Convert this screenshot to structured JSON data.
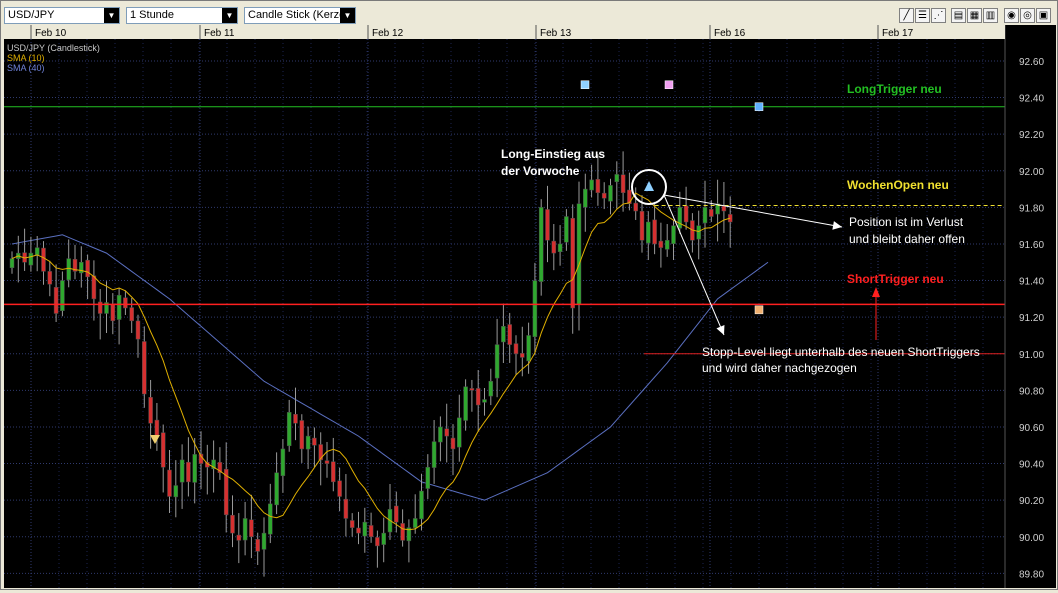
{
  "toolbar": {
    "symbol": "USD/JPY",
    "interval": "1 Stunde",
    "chart_style": "Candle Stick (Kerze"
  },
  "legend": {
    "instrument": "USD/JPY (Candlestick)",
    "sma10": "SMA (10)",
    "sma40": "SMA (40)"
  },
  "colors": {
    "background": "#000000",
    "grid": "#2f3a6e",
    "bull_candle": "#2fa82f",
    "bear_candle": "#d63030",
    "sma10": "#e0b000",
    "sma40": "#5a6fc0",
    "long_trigger": "#23c023",
    "short_trigger": "#ff2020",
    "wochen_open": "#f0e030"
  },
  "chart_data": {
    "type": "candlestick",
    "x_labels": [
      "Feb 10",
      "Feb 11",
      "Feb 12",
      "Feb 13",
      "Feb 16",
      "Feb 17"
    ],
    "y_ticks": [
      "92.60",
      "92.40",
      "92.20",
      "92.00",
      "91.80",
      "91.60",
      "91.40",
      "91.20",
      "91.00",
      "90.80",
      "90.60",
      "90.40",
      "90.20",
      "90.00",
      "89.80"
    ],
    "ylim": [
      89.72,
      92.72
    ],
    "grid": true,
    "closes": [
      91.52,
      91.55,
      91.5,
      91.55,
      91.58,
      91.45,
      91.38,
      91.22,
      91.4,
      91.52,
      91.45,
      91.5,
      91.42,
      91.3,
      91.22,
      91.28,
      91.18,
      91.32,
      91.25,
      91.18,
      91.08,
      90.78,
      90.62,
      90.55,
      90.38,
      90.22,
      90.28,
      90.42,
      90.3,
      90.45,
      90.4,
      90.38,
      90.42,
      90.35,
      90.12,
      90.02,
      89.98,
      90.1,
      90.0,
      89.92,
      90.02,
      90.18,
      90.35,
      90.48,
      90.68,
      90.62,
      90.48,
      90.55,
      90.5,
      90.42,
      90.4,
      90.3,
      90.22,
      90.1,
      90.05,
      90.02,
      90.08,
      90.0,
      89.95,
      90.02,
      90.15,
      90.08,
      89.98,
      90.05,
      90.1,
      90.25,
      90.38,
      90.52,
      90.6,
      90.55,
      90.48,
      90.65,
      90.82,
      90.8,
      90.72,
      90.75,
      90.85,
      91.05,
      91.15,
      91.05,
      91.0,
      90.98,
      91.1,
      91.4,
      91.8,
      91.62,
      91.55,
      91.6,
      91.75,
      91.25,
      91.82,
      91.9,
      91.95,
      91.88,
      91.85,
      91.92,
      91.98,
      91.88,
      91.82,
      91.78,
      91.62,
      91.72,
      91.6,
      91.58,
      91.62,
      91.7,
      91.8,
      91.72,
      91.62,
      91.7,
      91.8,
      91.75,
      91.82,
      91.78,
      91.72
    ],
    "long_trigger": 92.35,
    "short_trigger": 91.27,
    "wochen_open": 91.81,
    "stopp_level": 91.0,
    "sma40_anchors": [
      [
        0,
        91.6
      ],
      [
        8,
        91.65
      ],
      [
        15,
        91.55
      ],
      [
        25,
        91.3
      ],
      [
        40,
        90.85
      ],
      [
        55,
        90.55
      ],
      [
        65,
        90.3
      ],
      [
        75,
        90.2
      ],
      [
        85,
        90.35
      ],
      [
        95,
        90.6
      ],
      [
        104,
        90.95
      ],
      [
        112,
        91.3
      ],
      [
        120,
        91.5
      ]
    ],
    "markers": [
      {
        "index": 117,
        "price": 92.47,
        "color": "#8fd0ff"
      },
      {
        "index": 125,
        "price": 92.47,
        "color": "#f0a0f0"
      },
      {
        "index": 136,
        "price": 92.35,
        "color": "#60b0ff"
      },
      {
        "index": 136,
        "price": 91.24,
        "color": "#f0b070"
      }
    ],
    "annotations": {
      "long_trigger_label": "LongTrigger neu",
      "wochen_open_label": "WochenOpen neu",
      "short_trigger_label": "ShortTrigger neu",
      "long_entry_line1": "Long-Einstieg aus",
      "long_entry_line2": "der Vorwoche",
      "position_line1": "Position ist im Verlust",
      "position_line2": "und bleibt daher offen",
      "stopp_line1": "Stopp-Level liegt unterhalb des neuen ShortTriggers",
      "stopp_line2": "und wird daher nachgezogen"
    }
  }
}
